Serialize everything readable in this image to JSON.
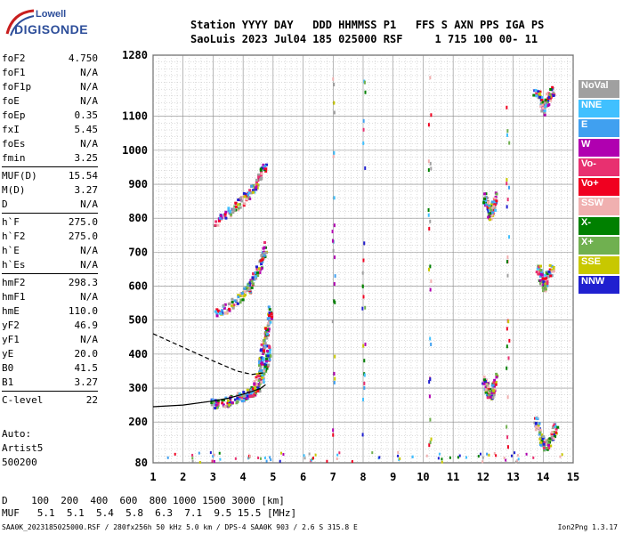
{
  "logo": {
    "line1": "Lowell",
    "line2": "DIGISONDE"
  },
  "header": {
    "labels": "Station YYYY DAY   DDD HHMMSS P1   FFS S AXN PPS IGA PS",
    "values": "SaoLuis 2023 Jul04 185 025000 RSF     1 715 100 00- 11"
  },
  "params": [
    [
      {
        "n": "foF2",
        "v": "4.750"
      },
      {
        "n": "foF1",
        "v": "N/A"
      },
      {
        "n": "foF1p",
        "v": "N/A"
      },
      {
        "n": "foE",
        "v": "N/A"
      },
      {
        "n": "foEp",
        "v": "0.35"
      },
      {
        "n": "fxI",
        "v": "5.45"
      },
      {
        "n": "foEs",
        "v": "N/A"
      },
      {
        "n": "fmin",
        "v": "3.25"
      }
    ],
    [
      {
        "n": "MUF(D)",
        "v": "15.54"
      },
      {
        "n": "M(D)",
        "v": "3.27"
      },
      {
        "n": "D",
        "v": "N/A"
      }
    ],
    [
      {
        "n": "h`F",
        "v": "275.0"
      },
      {
        "n": "h`F2",
        "v": "275.0"
      },
      {
        "n": "h`E",
        "v": "N/A"
      },
      {
        "n": "h`Es",
        "v": "N/A"
      }
    ],
    [
      {
        "n": "hmF2",
        "v": "298.3"
      },
      {
        "n": "hmF1",
        "v": "N/A"
      },
      {
        "n": "hmE",
        "v": "110.0"
      },
      {
        "n": "yF2",
        "v": "46.9"
      },
      {
        "n": "yF1",
        "v": "N/A"
      },
      {
        "n": "yE",
        "v": "20.0"
      },
      {
        "n": "B0",
        "v": "41.5"
      },
      {
        "n": "B1",
        "v": "3.27"
      }
    ],
    [
      {
        "n": "C-level",
        "v": "22"
      }
    ]
  ],
  "auto": {
    "line1": "Auto:",
    "line2": "Artist5",
    "line3": "500200"
  },
  "legend": [
    {
      "label": "NoVal",
      "color": "#a0a0a0"
    },
    {
      "label": "NNE",
      "color": "#40c0ff"
    },
    {
      "label": "E",
      "color": "#40a0f0"
    },
    {
      "label": "W",
      "color": "#b000b0"
    },
    {
      "label": "Vo-",
      "color": "#e83070"
    },
    {
      "label": "Vo+",
      "color": "#f00020"
    },
    {
      "label": "SSW",
      "color": "#f0b0b0"
    },
    {
      "label": "X-",
      "color": "#008000"
    },
    {
      "label": "X+",
      "color": "#70b050"
    },
    {
      "label": "SSE",
      "color": "#c8c800"
    },
    {
      "label": "NNW",
      "color": "#2020d0"
    }
  ],
  "chart_data": {
    "type": "scatter",
    "xlabel": "",
    "ylabel": "",
    "xlim": [
      1,
      15
    ],
    "ylim": [
      80,
      1280
    ],
    "x_ticks": [
      1,
      2,
      3,
      4,
      5,
      6,
      7,
      8,
      9,
      10,
      11,
      12,
      13,
      14,
      15
    ],
    "y_ticks": [
      80,
      200,
      300,
      400,
      500,
      600,
      700,
      800,
      900,
      1000,
      1100,
      1280
    ],
    "grid": true,
    "series": [
      {
        "kind": "solid-profile",
        "x": [
          1.0,
          2.0,
          3.0,
          3.5,
          4.0,
          4.3,
          4.6,
          4.75
        ],
        "y": [
          245,
          250,
          262,
          270,
          282,
          290,
          300,
          310
        ]
      },
      {
        "kind": "dashed-profile",
        "x": [
          1.0,
          2.0,
          3.0,
          3.8,
          4.3,
          4.7
        ],
        "y": [
          460,
          420,
          380,
          350,
          340,
          345
        ]
      }
    ],
    "traces": [
      {
        "x": [
          2.9,
          3.3,
          3.7,
          4.0,
          4.2,
          4.4,
          4.6,
          4.75,
          4.85
        ],
        "y": [
          255,
          262,
          270,
          280,
          290,
          300,
          330,
          380,
          420
        ]
      },
      {
        "x": [
          3.0,
          3.5,
          3.9,
          4.2,
          4.4,
          4.6,
          4.7
        ],
        "y": [
          520,
          545,
          570,
          600,
          640,
          680,
          720
        ]
      },
      {
        "x": [
          3.0,
          3.5,
          3.9,
          4.2,
          4.5,
          4.7
        ],
        "y": [
          790,
          820,
          850,
          880,
          920,
          960
        ]
      },
      {
        "x": [
          4.3,
          4.5,
          4.6,
          4.7,
          4.8,
          4.9
        ],
        "y": [
          300,
          350,
          400,
          450,
          500,
          540
        ]
      },
      {
        "x": [
          12.0,
          12.1,
          12.2,
          12.3,
          12.4
        ],
        "y": [
          330,
          300,
          280,
          300,
          340
        ]
      },
      {
        "x": [
          12.0,
          12.1,
          12.2,
          12.3,
          12.4
        ],
        "y": [
          870,
          840,
          810,
          840,
          870
        ]
      },
      {
        "x": [
          13.8,
          13.9,
          14.0,
          14.1,
          14.3
        ],
        "y": [
          660,
          620,
          600,
          630,
          660
        ]
      },
      {
        "x": [
          13.7,
          13.9,
          14.0,
          14.1,
          14.3
        ],
        "y": [
          1180,
          1150,
          1120,
          1150,
          1180
        ]
      },
      {
        "x": [
          13.7,
          13.9,
          14.0,
          14.2,
          14.4
        ],
        "y": [
          210,
          160,
          130,
          150,
          190
        ]
      }
    ]
  },
  "bottom": {
    "d_row": "D    100  200  400  600  800 1000 1500 3000 [km]",
    "muf_row": "MUF   5.1  5.1  5.4  5.8  6.3  7.1  9.5 15.5 [MHz]"
  },
  "footer": "SAA0K_2023185025000.RSF / 280fx256h 50 kHz 5.0 km / DPS-4 SAA0K 903 / 2.6 S 315.8 E",
  "version": "Ion2Png 1.3.17"
}
